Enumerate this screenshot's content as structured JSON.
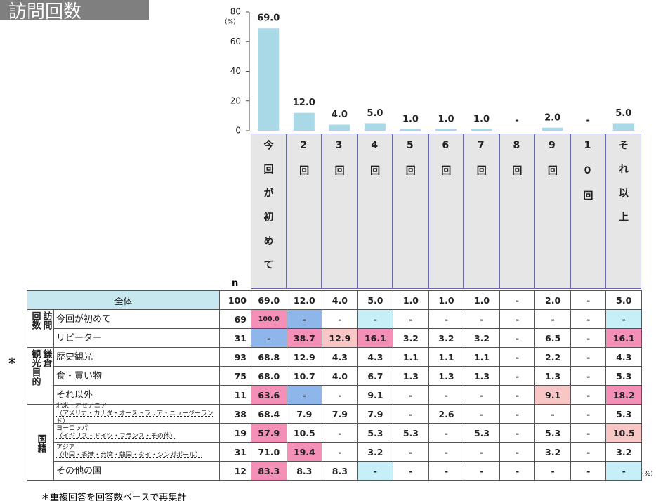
{
  "title": "訪問回数",
  "chart_data": {
    "type": "bar",
    "categories": [
      "今回が初めて",
      "2回",
      "3回",
      "4回",
      "5回",
      "6回",
      "7回",
      "8回",
      "9回",
      "10回",
      "それ以上"
    ],
    "values": [
      69.0,
      12.0,
      4.0,
      5.0,
      1.0,
      1.0,
      1.0,
      0,
      2.0,
      0,
      5.0
    ],
    "value_labels": [
      "69.0",
      "12.0",
      "4.0",
      "5.0",
      "1.0",
      "1.0",
      "1.0",
      "-",
      "2.0",
      "-",
      "5.0"
    ],
    "color": "#a9d9e6",
    "ylim": [
      0,
      80
    ],
    "yticks": [
      0,
      20,
      40,
      60,
      80
    ],
    "y_unit": "(%)"
  },
  "table": {
    "n_header": "n",
    "total": {
      "label": "全体",
      "n": 100,
      "cells": [
        "69.0",
        "12.0",
        "4.0",
        "5.0",
        "1.0",
        "1.0",
        "1.0",
        "-",
        "2.0",
        "-",
        "5.0"
      ]
    },
    "groups": [
      {
        "lines": [
          "訪問",
          "回数"
        ],
        "rows": [
          {
            "label": "今回が初めて",
            "n": 69,
            "cells": [
              "100.0",
              "-",
              "-",
              "-",
              "-",
              "-",
              "-",
              "-",
              "-",
              "-",
              "-"
            ],
            "highlights": {
              "0": "#f48fb8",
              "1": "#8fb6ea",
              "3": "#c6eff8",
              "10": "#c6eff8"
            }
          },
          {
            "label": "リピーター",
            "n": 31,
            "cells": [
              "-",
              "38.7",
              "12.9",
              "16.1",
              "3.2",
              "3.2",
              "3.2",
              "-",
              "6.5",
              "-",
              "16.1"
            ],
            "highlights": {
              "0": "#8fb6ea",
              "1": "#f48fb8",
              "2": "#f9c6c6",
              "3": "#f48fb8",
              "10": "#f48fb8"
            }
          }
        ]
      },
      {
        "lines": [
          "鎌倉",
          "観光目的"
        ],
        "rows": [
          {
            "label": "歴史観光",
            "n": 93,
            "cells": [
              "68.8",
              "12.9",
              "4.3",
              "4.3",
              "1.1",
              "1.1",
              "1.1",
              "-",
              "2.2",
              "-",
              "4.3"
            ]
          },
          {
            "label": "食・買い物",
            "n": 75,
            "cells": [
              "68.0",
              "10.7",
              "4.0",
              "6.7",
              "1.3",
              "1.3",
              "1.3",
              "-",
              "1.3",
              "-",
              "5.3"
            ]
          },
          {
            "label": "それ以外",
            "n": 11,
            "cells": [
              "63.6",
              "-",
              "-",
              "9.1",
              "-",
              "-",
              "-",
              "-",
              "9.1",
              "-",
              "18.2"
            ],
            "highlights": {
              "0": "#f48fb8",
              "1": "#8fb6ea",
              "8": "#f9c6c6",
              "10": "#f48fb8"
            }
          }
        ]
      },
      {
        "lines": [
          "国籍"
        ],
        "rows": [
          {
            "label": "北米・オセアニア",
            "sublabel": "（アメリカ・カナダ・オーストラリア・ニュージーランド）",
            "n": 38,
            "cells": [
              "68.4",
              "7.9",
              "7.9",
              "7.9",
              "-",
              "2.6",
              "-",
              "-",
              "-",
              "-",
              "5.3"
            ]
          },
          {
            "label": "ヨーロッパ",
            "sublabel": "（イギリス・ドイツ・フランス・その他）",
            "n": 19,
            "cells": [
              "57.9",
              "10.5",
              "-",
              "5.3",
              "5.3",
              "-",
              "5.3",
              "-",
              "5.3",
              "-",
              "10.5"
            ],
            "highlights": {
              "0": "#f48fb8",
              "10": "#f9c6c6"
            }
          },
          {
            "label": "アジア",
            "sublabel": "（中国・香港・台湾・韓国・タイ・シンガポール）",
            "n": 31,
            "cells": [
              "71.0",
              "19.4",
              "-",
              "3.2",
              "-",
              "-",
              "-",
              "-",
              "3.2",
              "-",
              "3.2"
            ],
            "highlights": {
              "1": "#f48fb8"
            }
          },
          {
            "label": "その他の国",
            "n": 12,
            "cells": [
              "83.3",
              "8.3",
              "8.3",
              "-",
              "-",
              "-",
              "-",
              "-",
              "-",
              "-",
              "-"
            ],
            "highlights": {
              "0": "#f48fb8",
              "3": "#c6eff8",
              "10": "#c6eff8"
            }
          }
        ]
      }
    ],
    "unit": "(%)"
  },
  "marker": "*",
  "footnote": "＊重複回答を回答数ベースで再集計"
}
